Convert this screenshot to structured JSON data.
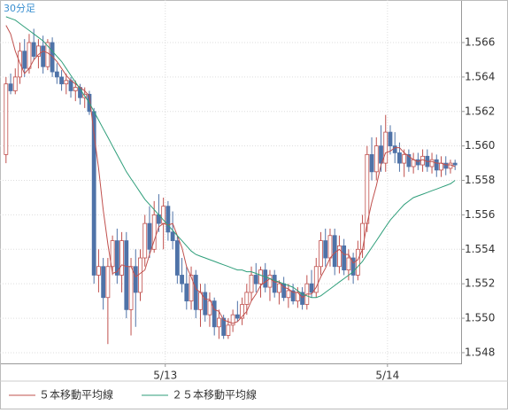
{
  "chart_data": {
    "type": "candlestick",
    "title": "30分足",
    "xlim": [
      -1.3,
      98.3
    ],
    "xticks": [
      {
        "value": 34.4,
        "label": "5/13"
      },
      {
        "value": 82.4,
        "label": "5/14"
      }
    ],
    "ylim": [
      1.54738,
      1.56847
    ],
    "yticks": [
      1.548,
      {
        "value": 1.55,
        "label": "1.550"
      },
      1.552,
      1.554,
      1.556,
      1.558,
      {
        "value": 1.56,
        "label": "1.560"
      },
      1.562,
      1.564,
      1.566
    ],
    "grid": true,
    "up_color": "#c0504d",
    "down_color": "#4f73a8",
    "candles": {
      "open": [
        1.5595,
        1.5636,
        1.5632,
        1.564,
        1.5655,
        1.5645,
        1.566,
        1.5652,
        1.5658,
        1.5646,
        1.566,
        1.5643,
        1.564,
        1.5636,
        1.5638,
        1.5632,
        1.5634,
        1.5628,
        1.563,
        1.562,
        1.5525,
        1.553,
        1.5512,
        1.553,
        1.5545,
        1.5525,
        1.5545,
        1.5505,
        1.553,
        1.5515,
        1.5535,
        1.5555,
        1.554,
        1.556,
        1.5555,
        1.5565,
        1.555,
        1.5545,
        1.5525,
        1.552,
        1.551,
        1.5525,
        1.5505,
        1.5515,
        1.5502,
        1.551,
        1.5495,
        1.55,
        1.549,
        1.5496,
        1.5502,
        1.55,
        1.5508,
        1.5515,
        1.5525,
        1.552,
        1.5528,
        1.5518,
        1.5525,
        1.5515,
        1.552,
        1.5512,
        1.5516,
        1.551,
        1.5515,
        1.5508,
        1.552,
        1.5515,
        1.553,
        1.5545,
        1.5535,
        1.5548,
        1.553,
        1.5542,
        1.5528,
        1.5535,
        1.5525,
        1.554,
        1.5555,
        1.5595,
        1.5585,
        1.56,
        1.559,
        1.5608,
        1.56,
        1.5596,
        1.559,
        1.5595,
        1.5588,
        1.5592,
        1.5589,
        1.5594,
        1.5588,
        1.5592,
        1.5586,
        1.559,
        1.5587,
        1.559
      ],
      "high": [
        1.564,
        1.5642,
        1.5645,
        1.566,
        1.5662,
        1.5665,
        1.5668,
        1.5662,
        1.5664,
        1.5662,
        1.5663,
        1.5648,
        1.5644,
        1.5642,
        1.564,
        1.5638,
        1.5636,
        1.5634,
        1.5632,
        1.5622,
        1.554,
        1.5535,
        1.5535,
        1.5548,
        1.5552,
        1.555,
        1.555,
        1.5535,
        1.554,
        1.554,
        1.556,
        1.5565,
        1.5568,
        1.5572,
        1.557,
        1.5568,
        1.5562,
        1.5548,
        1.5535,
        1.553,
        1.553,
        1.5528,
        1.552,
        1.552,
        1.5515,
        1.5512,
        1.5505,
        1.5502,
        1.55,
        1.5505,
        1.551,
        1.5512,
        1.552,
        1.553,
        1.5532,
        1.553,
        1.5532,
        1.5528,
        1.5528,
        1.5522,
        1.5524,
        1.552,
        1.552,
        1.5518,
        1.5518,
        1.5525,
        1.5528,
        1.5535,
        1.555,
        1.5552,
        1.5552,
        1.5552,
        1.5548,
        1.5546,
        1.554,
        1.5538,
        1.5545,
        1.556,
        1.56,
        1.5605,
        1.5605,
        1.5612,
        1.5618,
        1.5612,
        1.5608,
        1.5602,
        1.5598,
        1.5598,
        1.5596,
        1.5596,
        1.5598,
        1.5598,
        1.5596,
        1.5595,
        1.5594,
        1.5594,
        1.5592,
        1.5592
      ],
      "low": [
        1.559,
        1.563,
        1.563,
        1.5636,
        1.564,
        1.5642,
        1.565,
        1.5645,
        1.5642,
        1.5644,
        1.564,
        1.5636,
        1.5632,
        1.563,
        1.5628,
        1.5626,
        1.5624,
        1.5622,
        1.5618,
        1.552,
        1.5515,
        1.5505,
        1.5485,
        1.5525,
        1.552,
        1.5515,
        1.55,
        1.549,
        1.5495,
        1.551,
        1.553,
        1.5535,
        1.5538,
        1.555,
        1.554,
        1.5545,
        1.554,
        1.552,
        1.5515,
        1.5505,
        1.5505,
        1.55,
        1.5495,
        1.5498,
        1.5495,
        1.549,
        1.5488,
        1.5488,
        1.5488,
        1.5492,
        1.5498,
        1.5496,
        1.5502,
        1.551,
        1.5515,
        1.5512,
        1.5515,
        1.551,
        1.5512,
        1.5508,
        1.551,
        1.5506,
        1.5508,
        1.5506,
        1.5505,
        1.5505,
        1.5512,
        1.5512,
        1.5525,
        1.553,
        1.553,
        1.5525,
        1.5526,
        1.5525,
        1.5522,
        1.552,
        1.5522,
        1.5535,
        1.555,
        1.558,
        1.558,
        1.5585,
        1.5585,
        1.5595,
        1.559,
        1.5585,
        1.5582,
        1.5585,
        1.5584,
        1.5586,
        1.5585,
        1.5585,
        1.5584,
        1.5582,
        1.5582,
        1.5583,
        1.5584,
        1.5586
      ],
      "close": [
        1.5636,
        1.5632,
        1.564,
        1.5655,
        1.5645,
        1.566,
        1.5652,
        1.5658,
        1.5646,
        1.566,
        1.5643,
        1.564,
        1.5636,
        1.5638,
        1.5632,
        1.5634,
        1.5628,
        1.563,
        1.562,
        1.5525,
        1.553,
        1.5512,
        1.553,
        1.5545,
        1.5525,
        1.5545,
        1.5505,
        1.553,
        1.5515,
        1.5535,
        1.5555,
        1.554,
        1.556,
        1.5555,
        1.5565,
        1.555,
        1.5545,
        1.5525,
        1.552,
        1.551,
        1.5525,
        1.5505,
        1.5515,
        1.5502,
        1.551,
        1.5495,
        1.55,
        1.549,
        1.5496,
        1.5502,
        1.55,
        1.5508,
        1.5515,
        1.5525,
        1.552,
        1.5528,
        1.5518,
        1.5525,
        1.5515,
        1.552,
        1.5512,
        1.5516,
        1.551,
        1.5515,
        1.5508,
        1.552,
        1.5515,
        1.553,
        1.5545,
        1.5535,
        1.5548,
        1.553,
        1.5542,
        1.5528,
        1.5535,
        1.5525,
        1.554,
        1.5555,
        1.5595,
        1.5585,
        1.56,
        1.559,
        1.5608,
        1.56,
        1.5596,
        1.559,
        1.5595,
        1.5588,
        1.5592,
        1.5589,
        1.5594,
        1.5588,
        1.5592,
        1.5586,
        1.559,
        1.5587,
        1.559,
        1.5589
      ]
    },
    "series": [
      {
        "name": "５本移動平均線",
        "color": "#c0504d",
        "values": [
          1.567,
          1.5665,
          1.5655,
          1.5648,
          1.5642,
          1.5645,
          1.565,
          1.5653,
          1.5655,
          1.5654,
          1.5652,
          1.5649,
          1.5645,
          1.5641,
          1.5638,
          1.5636,
          1.5634,
          1.5632,
          1.5629,
          1.5607,
          1.5587,
          1.5563,
          1.5543,
          1.5526,
          1.5527,
          1.5531,
          1.553,
          1.553,
          1.5524,
          1.5526,
          1.5528,
          1.5537,
          1.5545,
          1.5553,
          1.5555,
          1.5554,
          1.5555,
          1.5548,
          1.5541,
          1.553,
          1.5524,
          1.5517,
          1.5515,
          1.5511,
          1.5511,
          1.5505,
          1.5504,
          1.5499,
          1.5498,
          1.5497,
          1.5498,
          1.5501,
          1.5504,
          1.551,
          1.5514,
          1.5519,
          1.5521,
          1.5523,
          1.5521,
          1.5521,
          1.5518,
          1.5517,
          1.5515,
          1.5515,
          1.5512,
          1.5514,
          1.5514,
          1.5518,
          1.5524,
          1.5529,
          1.5535,
          1.5538,
          1.554,
          1.5537,
          1.5537,
          1.5532,
          1.5534,
          1.554,
          1.5555,
          1.5567,
          1.5577,
          1.5589,
          1.5596,
          1.5597,
          1.5599,
          1.5599,
          1.5596,
          1.5594,
          1.5592,
          1.5591,
          1.5592,
          1.5591,
          1.5591,
          1.559,
          1.559,
          1.5589,
          1.5589,
          1.5588
        ]
      },
      {
        "name": "２５本移動平均線",
        "color": "#2e9e7a",
        "values": [
          1.5675,
          1.5674,
          1.5673,
          1.5671,
          1.5669,
          1.5667,
          1.5665,
          1.5663,
          1.5661,
          1.5658,
          1.5655,
          1.5652,
          1.5649,
          1.5645,
          1.5641,
          1.5637,
          1.5633,
          1.5629,
          1.5625,
          1.562,
          1.5615,
          1.561,
          1.5605,
          1.56,
          1.5595,
          1.559,
          1.5585,
          1.5581,
          1.5577,
          1.5573,
          1.5569,
          1.5566,
          1.5563,
          1.556,
          1.5557,
          1.5554,
          1.5551,
          1.5548,
          1.5545,
          1.5542,
          1.5539,
          1.5537,
          1.5536,
          1.5535,
          1.5534,
          1.5533,
          1.5532,
          1.5531,
          1.553,
          1.5529,
          1.5528,
          1.5528,
          1.5527,
          1.5527,
          1.5526,
          1.5525,
          1.5524,
          1.5523,
          1.5522,
          1.5521,
          1.552,
          1.5519,
          1.5518,
          1.5516,
          1.5514,
          1.5513,
          1.5512,
          1.5512,
          1.5513,
          1.5515,
          1.5517,
          1.5519,
          1.5521,
          1.5523,
          1.5525,
          1.5527,
          1.553,
          1.5533,
          1.5537,
          1.5541,
          1.5545,
          1.5549,
          1.5553,
          1.5557,
          1.556,
          1.5563,
          1.5566,
          1.5568,
          1.557,
          1.5571,
          1.5572,
          1.5573,
          1.5574,
          1.5575,
          1.5576,
          1.5577,
          1.5578,
          1.558
        ]
      }
    ]
  }
}
